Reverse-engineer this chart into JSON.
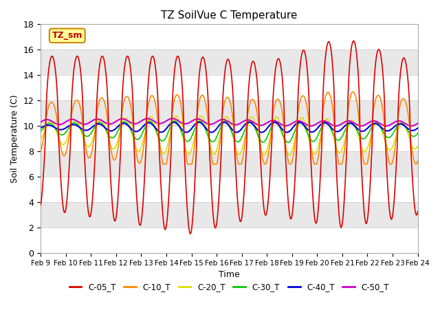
{
  "title": "TZ SoilVue C Temperature",
  "ylabel": "Soil Temperature (C)",
  "xlabel": "Time",
  "ylim": [
    0,
    18
  ],
  "xlim": [
    0,
    15
  ],
  "x_tick_labels": [
    "Feb 9",
    "Feb 10",
    "Feb 11",
    "Feb 12",
    "Feb 13",
    "Feb 14",
    "Feb 15",
    "Feb 16",
    "Feb 17",
    "Feb 18",
    "Feb 19",
    "Feb 20",
    "Feb 21",
    "Feb 22",
    "Feb 23",
    "Feb 24"
  ],
  "watermark_text": "TZ_sm",
  "series": [
    {
      "label": "C-05_T",
      "color": "#dd0000",
      "linewidth": 1.2
    },
    {
      "label": "C-10_T",
      "color": "#ff8800",
      "linewidth": 1.2
    },
    {
      "label": "C-20_T",
      "color": "#dddd00",
      "linewidth": 1.2
    },
    {
      "label": "C-30_T",
      "color": "#00cc00",
      "linewidth": 1.2
    },
    {
      "label": "C-40_T",
      "color": "#0000dd",
      "linewidth": 1.5
    },
    {
      "label": "C-50_T",
      "color": "#cc00cc",
      "linewidth": 1.5
    }
  ],
  "band_colors": [
    "#ffffff",
    "#e8e8e8"
  ],
  "yticks": [
    0,
    2,
    4,
    6,
    8,
    10,
    12,
    14,
    16,
    18
  ]
}
